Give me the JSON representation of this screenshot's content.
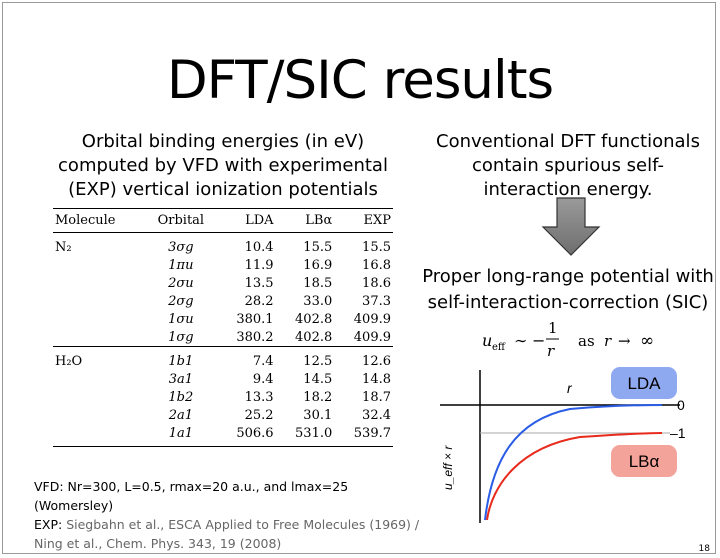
{
  "slide": {
    "title": "DFT/SIC results",
    "page_number": "18"
  },
  "left_caption": {
    "line1": "Orbital binding energies (in eV)",
    "line2": "computed by VFD with experimental",
    "line3": "(EXP) vertical ionization potentials"
  },
  "table": {
    "headers": {
      "molecule": "Molecule",
      "orbital": "Orbital",
      "lda": "LDA",
      "lba": "LBα",
      "exp": "EXP"
    },
    "rows": [
      {
        "molecule": "N₂",
        "orbital": "3σg",
        "lda": "10.4",
        "lba": "15.5",
        "exp": "15.5"
      },
      {
        "molecule": "",
        "orbital": "1πu",
        "lda": "11.9",
        "lba": "16.9",
        "exp": "16.8"
      },
      {
        "molecule": "",
        "orbital": "2σu",
        "lda": "13.5",
        "lba": "18.5",
        "exp": "18.6"
      },
      {
        "molecule": "",
        "orbital": "2σg",
        "lda": "28.2",
        "lba": "33.0",
        "exp": "37.3"
      },
      {
        "molecule": "",
        "orbital": "1σu",
        "lda": "380.1",
        "lba": "402.8",
        "exp": "409.9"
      },
      {
        "molecule": "",
        "orbital": "1σg",
        "lda": "380.2",
        "lba": "402.8",
        "exp": "409.9"
      },
      {
        "molecule": "H₂O",
        "orbital": "1b1",
        "lda": "7.4",
        "lba": "12.5",
        "exp": "12.6"
      },
      {
        "molecule": "",
        "orbital": "3a1",
        "lda": "9.4",
        "lba": "14.5",
        "exp": "14.8"
      },
      {
        "molecule": "",
        "orbital": "1b2",
        "lda": "13.3",
        "lba": "18.2",
        "exp": "18.7"
      },
      {
        "molecule": "",
        "orbital": "2a1",
        "lda": "25.2",
        "lba": "30.1",
        "exp": "32.4"
      },
      {
        "molecule": "",
        "orbital": "1a1",
        "lda": "506.6",
        "lba": "531.0",
        "exp": "539.7"
      }
    ]
  },
  "footnote": {
    "line1": "VFD: Nr=300, L=0.5, rmax=20 a.u., and lmax=25 (Womersley)",
    "line2_prefix": "EXP: ",
    "line2_rest": "Siegbahn et al., ESCA Applied to Free Molecules (1969) /",
    "line3": "Ning et al., Chem. Phys. 343, 19 (2008)"
  },
  "right_caption": {
    "line1": "Conventional DFT functionals",
    "line2": "contain spurious self-",
    "line3": "interaction energy."
  },
  "right_caption2": {
    "line1": "Proper long-range potential with",
    "line2": "self-interaction-correction (SIC)"
  },
  "formula": "u_eff ~ −1/r as r → ∞",
  "plot": {
    "x_label": "r",
    "y_label": "u_eff × r",
    "tick_zero": "0",
    "tick_minus_one": "–1",
    "legend_lda": "LDA",
    "legend_lba": "LBα",
    "colors": {
      "lda_curve": "#2b5ce6",
      "lba_curve": "#e8291c",
      "lda_box": "#8fa9f0",
      "lba_box": "#f4a39b"
    }
  }
}
